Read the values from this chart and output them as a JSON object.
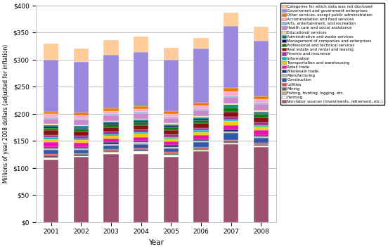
{
  "years": [
    2001,
    2002,
    2003,
    2004,
    2005,
    2006,
    2007,
    2008
  ],
  "xlabel": "Year",
  "ylabel": "Millions of year 2008 dollars (adjusted for inflation)",
  "ylim": [
    0,
    400
  ],
  "yticks": [
    0,
    50,
    100,
    150,
    200,
    250,
    300,
    350,
    400
  ],
  "ytick_labels": [
    "$0",
    "$50",
    "$100",
    "$150",
    "$200",
    "$250",
    "$300",
    "$350",
    "$400"
  ],
  "sectors": [
    "Non-labor sources (investments, retirement, etc.)",
    "Farming",
    "Fishing, hunting, logging, etc.",
    "Mining",
    "Utilities",
    "Construction",
    "Manufacturing",
    "Wholesale trade",
    "Retail trade",
    "Transportation and warehousing",
    "Information",
    "Finance and insurance",
    "Real estate and rental and leasing",
    "Professional and technical services",
    "Management of companies and enterprises",
    "Administrative and waste services",
    "Educational services",
    "Health care and social assistance",
    "Arts, entertainment, and recreation",
    "Accommodation and food services",
    "Other services, except public administration",
    "Government and government enterprises",
    "Categories for which data was not disclosed"
  ],
  "colors": [
    "#9B5070",
    "#FFFFF0",
    "#C8A882",
    "#666666",
    "#DD4444",
    "#3355AA",
    "#BBBBBB",
    "#223366",
    "#EE11AA",
    "#EECC00",
    "#00BBBB",
    "#993399",
    "#881111",
    "#117711",
    "#000066",
    "#007777",
    "#EEDD99",
    "#CC88CC",
    "#88BBDD",
    "#FFAACC",
    "#EE7700",
    "#9988DD",
    "#FFCC99"
  ],
  "data": {
    "Non-labor sources (investments, retirement, etc.)": [
      115,
      120,
      126,
      126,
      120,
      130,
      143,
      138
    ],
    "Farming": [
      3,
      1,
      2,
      4,
      3,
      2,
      2,
      2
    ],
    "Fishing, hunting, logging, etc.": [
      1,
      1,
      1,
      1,
      1,
      1,
      1,
      1
    ],
    "Mining": [
      4,
      3,
      3,
      3,
      3,
      3,
      4,
      3
    ],
    "Utilities": [
      2,
      2,
      2,
      2,
      2,
      2,
      2,
      2
    ],
    "Construction": [
      8,
      6,
      7,
      8,
      7,
      9,
      12,
      9
    ],
    "Manufacturing": [
      3,
      3,
      3,
      3,
      3,
      3,
      3,
      3
    ],
    "Wholesale trade": [
      3,
      3,
      3,
      3,
      3,
      3,
      4,
      3
    ],
    "Retail trade": [
      8,
      7,
      7,
      7,
      7,
      7,
      8,
      8
    ],
    "Transportation and warehousing": [
      6,
      5,
      5,
      6,
      5,
      6,
      7,
      7
    ],
    "Information": [
      3,
      3,
      3,
      3,
      3,
      3,
      3,
      3
    ],
    "Finance and insurance": [
      5,
      5,
      5,
      5,
      5,
      5,
      5,
      5
    ],
    "Real estate and rental and leasing": [
      8,
      8,
      8,
      8,
      8,
      8,
      10,
      9
    ],
    "Professional and technical services": [
      5,
      5,
      5,
      5,
      5,
      6,
      7,
      6
    ],
    "Management of companies and enterprises": [
      2,
      2,
      2,
      2,
      2,
      2,
      2,
      2
    ],
    "Administrative and waste services": [
      3,
      3,
      3,
      3,
      3,
      3,
      3,
      3
    ],
    "Educational services": [
      2,
      2,
      2,
      2,
      2,
      2,
      3,
      2
    ],
    "Health care and social assistance": [
      10,
      10,
      10,
      10,
      10,
      11,
      12,
      12
    ],
    "Arts, entertainment, and recreation": [
      2,
      2,
      2,
      2,
      2,
      2,
      2,
      2
    ],
    "Accommodation and food services": [
      6,
      6,
      6,
      6,
      6,
      7,
      8,
      7
    ],
    "Other services, except public administration": [
      5,
      5,
      5,
      5,
      5,
      5,
      6,
      5
    ],
    "Government and government enterprises": [
      95,
      93,
      98,
      100,
      95,
      100,
      115,
      103
    ],
    "Categories for which data was not disclosed": [
      30,
      25,
      28,
      28,
      22,
      20,
      25,
      25
    ]
  },
  "figsize": [
    5.52,
    3.54
  ],
  "dpi": 100,
  "bar_width": 0.5,
  "bar_edgecolor": "white",
  "bar_linewidth": 0.2,
  "legend_fontsize": 4.0,
  "tick_fontsize": 6.5,
  "xlabel_fontsize": 7.5,
  "ylabel_fontsize": 5.5,
  "grid_color": "#AAAAAA",
  "grid_linewidth": 0.5
}
